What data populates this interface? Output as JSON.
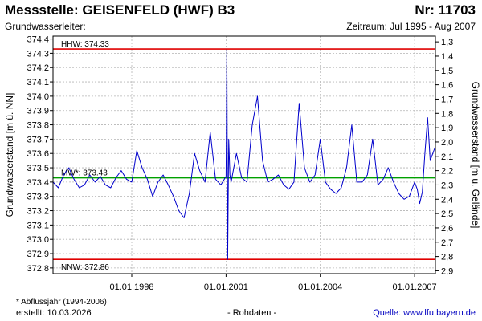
{
  "header": {
    "title": "Messstelle: GEISENFELD (HWF) B3",
    "nr": "Nr: 11703",
    "aquifer": "Grundwasserleiter:",
    "period": "Zeitraum: Jul 1995 - Aug 2007"
  },
  "footer": {
    "footnote": "* Abflussjahr (1994-2006)",
    "created": "erstellt:  10.03.2026",
    "rawdata": "- Rohdaten -",
    "source": "Quelle: www.lfu.bayern.de"
  },
  "colors": {
    "series": "#0000cc",
    "extreme_lines": "#e00000",
    "mean_line": "#00a000",
    "grid": "#b4b4b4"
  },
  "chart_data": {
    "type": "line",
    "ylabel": "Grundwasserstand [m ü. NN]",
    "y2label": "Grundwasserstand [m u. Gelände]",
    "xlim": [
      "1995-07-01",
      "2007-08-31"
    ],
    "ylim": [
      372.76,
      374.42
    ],
    "y2lim": [
      2.92,
      1.26
    ],
    "grid": true,
    "x_ticks": [
      "01.01.1998",
      "01.01.2001",
      "01.01.2004",
      "01.01.2007"
    ],
    "y_ticks": [
      "374,4",
      "374,3",
      "374,2",
      "374,1",
      "374,0",
      "373,9",
      "373,8",
      "373,7",
      "373,6",
      "373,5",
      "373,4",
      "373,3",
      "373,2",
      "373,1",
      "373,0",
      "372,9",
      "372,8"
    ],
    "y2_ticks": [
      "1,3",
      "1,4",
      "1,5",
      "1,6",
      "1,7",
      "1,8",
      "1,9",
      "2,0",
      "2,1",
      "2,2",
      "2,3",
      "2,4",
      "2,5",
      "2,6",
      "2,7",
      "2,8",
      "2,9"
    ],
    "reference_lines": [
      {
        "name": "HHW",
        "label": "HHW: 374.33",
        "value": 374.33,
        "style": "extreme"
      },
      {
        "name": "MW",
        "label": "MW*: 373.43",
        "value": 373.43,
        "style": "mean"
      },
      {
        "name": "NNW",
        "label": "NNW: 372.86",
        "value": 372.86,
        "style": "extreme"
      }
    ],
    "series": [
      {
        "x": [
          "1995-07-01",
          "1995-09-01",
          "1995-11-01",
          "1996-01-01",
          "1996-03-01",
          "1996-05-01",
          "1996-07-01",
          "1996-09-01",
          "1996-11-01",
          "1997-01-01",
          "1997-03-01",
          "1997-05-01",
          "1997-07-01",
          "1997-09-01",
          "1997-11-01",
          "1998-01-01",
          "1998-03-01",
          "1998-05-01",
          "1998-07-01",
          "1998-09-01",
          "1998-11-01",
          "1999-01-01",
          "1999-03-01",
          "1999-05-01",
          "1999-07-01",
          "1999-09-01",
          "1999-11-01",
          "2000-01-01",
          "2000-03-01",
          "2000-05-01",
          "2000-07-01",
          "2000-09-01",
          "2000-11-01",
          "2001-01-01",
          "2001-01-10",
          "2001-01-20",
          "2001-02-01",
          "2001-02-15",
          "2001-03-01",
          "2001-05-01",
          "2001-07-01",
          "2001-09-01",
          "2001-11-01",
          "2002-01-01",
          "2002-03-01",
          "2002-05-01",
          "2002-07-01",
          "2002-09-01",
          "2002-11-01",
          "2003-01-01",
          "2003-03-01",
          "2003-05-01",
          "2003-07-01",
          "2003-09-01",
          "2003-11-01",
          "2004-01-01",
          "2004-03-01",
          "2004-05-01",
          "2004-07-01",
          "2004-09-01",
          "2004-11-01",
          "2005-01-01",
          "2005-03-01",
          "2005-05-01",
          "2005-07-01",
          "2005-09-01",
          "2005-11-01",
          "2006-01-01",
          "2006-03-01",
          "2006-05-01",
          "2006-07-01",
          "2006-09-01",
          "2006-11-01",
          "2007-01-01",
          "2007-02-01",
          "2007-03-01",
          "2007-04-01",
          "2007-05-01",
          "2007-06-01",
          "2007-07-01",
          "2007-08-31"
        ],
        "y": [
          373.4,
          373.36,
          373.45,
          373.5,
          373.42,
          373.36,
          373.38,
          373.45,
          373.4,
          373.44,
          373.38,
          373.36,
          373.43,
          373.48,
          373.42,
          373.4,
          373.62,
          373.5,
          373.42,
          373.3,
          373.4,
          373.45,
          373.38,
          373.3,
          373.2,
          373.15,
          373.32,
          373.6,
          373.48,
          373.4,
          373.75,
          373.42,
          373.38,
          373.44,
          374.33,
          372.86,
          373.7,
          373.45,
          373.4,
          373.6,
          373.43,
          373.4,
          373.8,
          374.0,
          373.55,
          373.4,
          373.42,
          373.45,
          373.38,
          373.35,
          373.4,
          373.95,
          373.5,
          373.4,
          373.45,
          373.7,
          373.4,
          373.35,
          373.32,
          373.36,
          373.5,
          373.8,
          373.4,
          373.4,
          373.45,
          373.7,
          373.38,
          373.42,
          373.5,
          373.4,
          373.32,
          373.28,
          373.3,
          373.4,
          373.35,
          373.25,
          373.33,
          373.6,
          373.85,
          373.55,
          373.65
        ]
      }
    ]
  }
}
